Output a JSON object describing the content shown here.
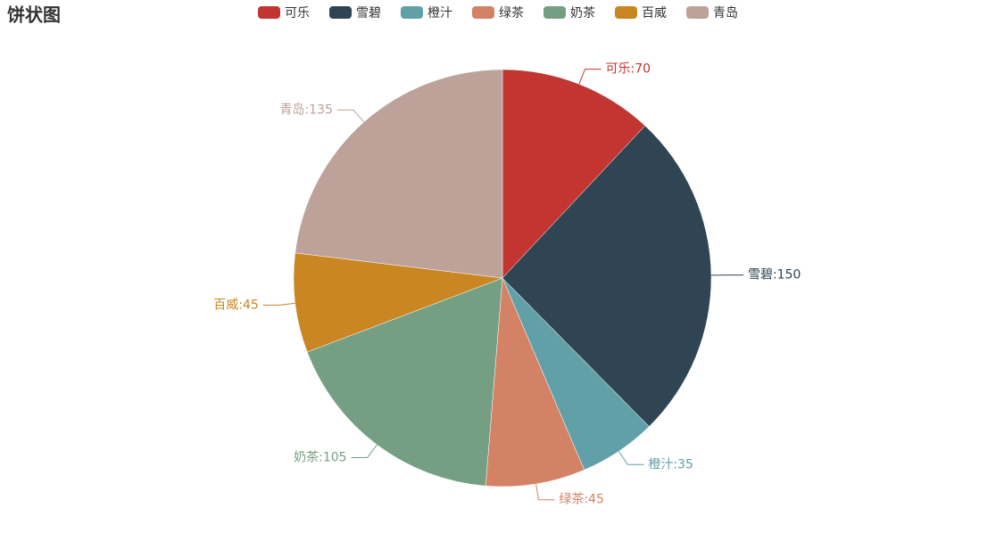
{
  "chart_data": {
    "type": "pie",
    "title": "饼状图",
    "categories": [
      "可乐",
      "雪碧",
      "橙汁",
      "绿茶",
      "奶茶",
      "百威",
      "青岛"
    ],
    "values": [
      70,
      150,
      35,
      45,
      105,
      45,
      135
    ],
    "value_labels": [
      "可乐:70",
      "雪碧:150",
      "橙汁:35",
      "绿茶:45",
      "奶茶:105",
      "百威:45",
      "青岛:135"
    ],
    "colors": [
      "#c23531",
      "#2f4554",
      "#61a0a8",
      "#d48265",
      "#749f83",
      "#ca8622",
      "#bda29a"
    ],
    "legend": "top"
  }
}
